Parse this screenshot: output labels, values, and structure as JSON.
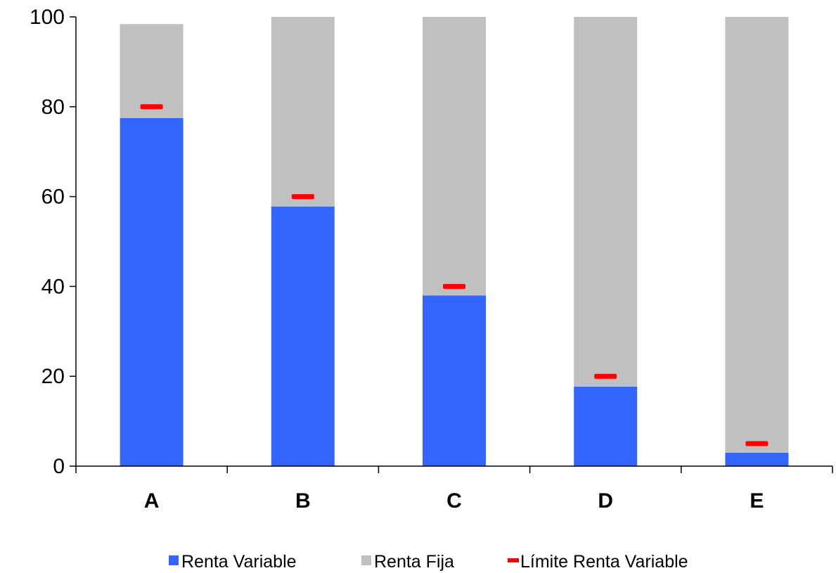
{
  "chart_data": {
    "type": "bar",
    "stacked": true,
    "categories": [
      "A",
      "B",
      "C",
      "D",
      "E"
    ],
    "series": [
      {
        "name": "Renta Variable",
        "values": [
          77.5,
          57.8,
          38,
          17.7,
          3
        ],
        "color": "#3366ff"
      },
      {
        "name": "Renta Fija",
        "values": [
          20.9,
          42.2,
          62,
          82.3,
          97
        ],
        "color": "#c0c0c0"
      }
    ],
    "markers": {
      "name": "Límite Renta Variable",
      "values": [
        80,
        60,
        40,
        20,
        5
      ],
      "color": "#ff0000"
    },
    "ylim": [
      0,
      100
    ],
    "yticks": [
      0,
      20,
      40,
      60,
      80,
      100
    ],
    "grid": false,
    "legend": "bottom"
  },
  "legend": {
    "items": [
      {
        "label": "Renta Variable",
        "color": "#3366ff"
      },
      {
        "label": "Renta Fija",
        "color": "#c0c0c0"
      },
      {
        "label": "Límite Renta Variable",
        "color": "#ff0000"
      }
    ]
  }
}
